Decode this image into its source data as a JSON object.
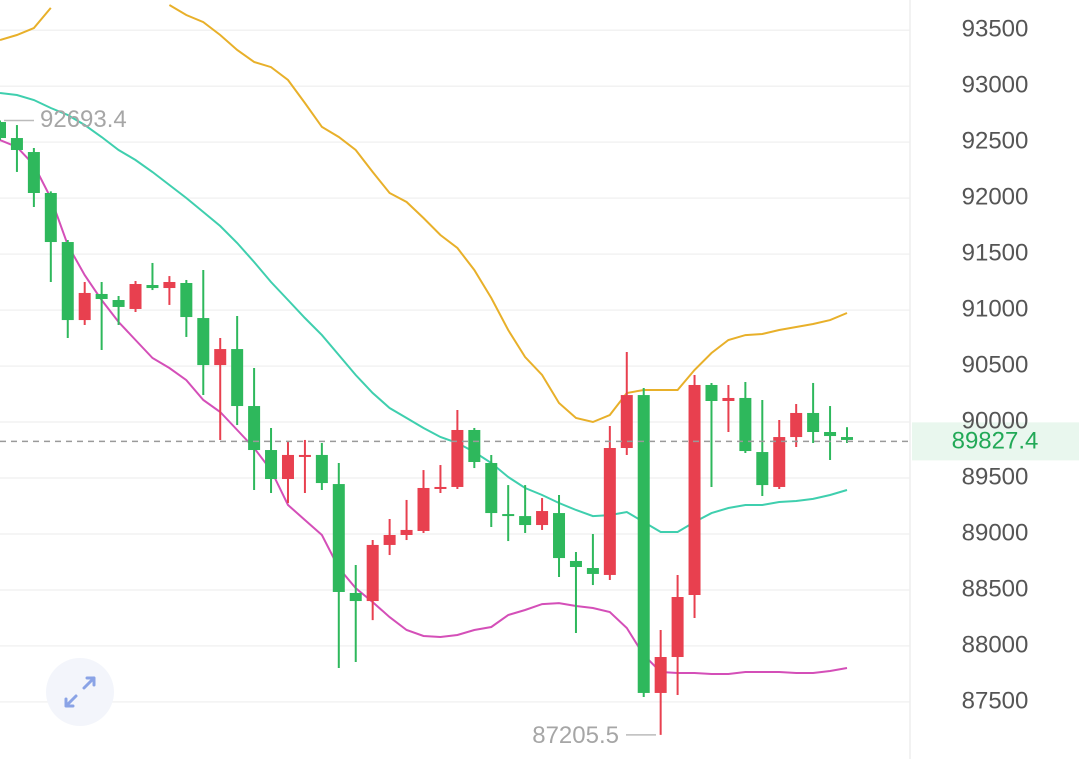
{
  "chart_data": {
    "type": "candlestick",
    "ylim": [
      86990,
      93770
    ],
    "yticks": [
      87500,
      88000,
      88500,
      89000,
      89500,
      90000,
      90500,
      91000,
      91500,
      92000,
      92500,
      93000,
      93500
    ],
    "grid": true,
    "up_color": "#e8404f",
    "down_color": "#2eb85c",
    "candles": {
      "open": [
        92680,
        92537,
        92412,
        92046,
        91608,
        90911,
        91144,
        91090,
        91010,
        91224,
        91197,
        91242,
        90929,
        90509,
        90652,
        90143,
        89750,
        89491,
        89688,
        89706,
        89446,
        88473,
        88401,
        88902,
        88991,
        89027,
        89402,
        89420,
        89929,
        89634,
        89178,
        89160,
        89080,
        89187,
        88759,
        88696,
        88634,
        89768,
        90241,
        87580,
        87901,
        88455,
        90331,
        90188,
        90215,
        89732,
        89420,
        89866,
        90081,
        89911,
        89866
      ],
      "high": [
        92693.4,
        92653,
        92448,
        92060,
        91626,
        91251,
        91251,
        91126,
        91260,
        91421,
        91304,
        91269,
        91358,
        90751,
        90947,
        90483,
        89947,
        89822,
        89840,
        89813,
        89634,
        88723,
        88946,
        89134,
        89304,
        89571,
        89616,
        90107,
        89947,
        89706,
        89437,
        89437,
        89321,
        89348,
        88839,
        89000,
        89965,
        90626,
        90304,
        88142,
        88634,
        90420,
        90349,
        90331,
        90358,
        90197,
        90018,
        90161,
        90349,
        90143,
        89954
      ],
      "low": [
        92519,
        92234,
        91921,
        91251,
        90751,
        90867,
        90643,
        90867,
        90983,
        91179,
        91046,
        90760,
        90241,
        89840,
        89973,
        89393,
        89366,
        89277,
        89366,
        89393,
        87803,
        87856,
        88231,
        88812,
        88946,
        89009,
        89366,
        89402,
        89589,
        89062,
        88937,
        89009,
        89036,
        88616,
        88115,
        88544,
        88589,
        89706,
        87544,
        87205.5,
        87562,
        88250,
        89420,
        89911,
        89723,
        89339,
        89402,
        89777,
        89813,
        89661,
        89813
      ],
      "close": [
        92537,
        92430,
        92046,
        91608,
        90911,
        91153,
        91099,
        91028,
        91233,
        91197,
        91251,
        90938,
        90509,
        90652,
        90143,
        89750,
        89491,
        89706,
        89706,
        89455,
        88482,
        88401,
        88902,
        88991,
        89036,
        89411,
        89420,
        89929,
        89643,
        89187,
        89169,
        89080,
        89205,
        88785,
        88705,
        88643,
        89768,
        90241,
        87580,
        87901,
        88437,
        90331,
        90188,
        90215,
        89741,
        89437,
        89866,
        90081,
        89911,
        89875,
        89840
      ]
    },
    "lines": [
      {
        "color": "#e8b02a",
        "values": [
          93413,
          93457,
          93520,
          93699,
          null,
          null,
          null,
          null,
          null,
          null,
          93725,
          93636,
          93573,
          93457,
          93323,
          93216,
          93171,
          93055,
          92850,
          92636,
          92546,
          92430,
          92234,
          92046,
          91966,
          91823,
          91671,
          91555,
          91358,
          91108,
          90822,
          90581,
          90420,
          90170,
          90036,
          90000,
          90063,
          90259,
          90286,
          90286,
          90286,
          90465,
          90617,
          90733,
          90777,
          90786,
          90822,
          90849,
          90876,
          90911,
          90974
        ]
      },
      {
        "color": "#3fcfae",
        "values": [
          92939,
          92921,
          92877,
          92805,
          92743,
          92653,
          92546,
          92430,
          92341,
          92234,
          92117,
          92001,
          91876,
          91751,
          91599,
          91430,
          91251,
          91090,
          90929,
          90777,
          90599,
          90420,
          90259,
          90125,
          90036,
          89947,
          89866,
          89813,
          89732,
          89634,
          89509,
          89411,
          89348,
          89277,
          89214,
          89160,
          89169,
          89196,
          89107,
          89018,
          89018,
          89107,
          89187,
          89232,
          89259,
          89259,
          89286,
          89295,
          89313,
          89348,
          89393
        ]
      },
      {
        "color": "#d44fb8",
        "values": [
          92519,
          92457,
          92296,
          92001,
          91581,
          91313,
          91090,
          90894,
          90733,
          90572,
          90483,
          90375,
          90197,
          90090,
          89929,
          89768,
          89571,
          89259,
          89125,
          88991,
          88696,
          88517,
          88392,
          88258,
          88142,
          88089,
          88080,
          88098,
          88142,
          88169,
          88276,
          88321,
          88374,
          88383,
          88357,
          88339,
          88303,
          88160,
          87919,
          87767,
          87758,
          87758,
          87749,
          87749,
          87767,
          87767,
          87767,
          87758,
          87758,
          87776,
          87803
        ]
      }
    ],
    "last_price": 89827.4,
    "high_marker": 92693.4,
    "low_marker": 87205.5
  }
}
